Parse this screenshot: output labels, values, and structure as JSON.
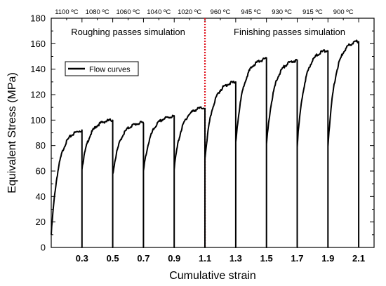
{
  "chart_data": {
    "type": "line",
    "title": "",
    "xlabel": "Cumulative strain",
    "ylabel": "Equivalent Stress (MPa)",
    "xlim": [
      0.1,
      2.2
    ],
    "ylim": [
      0,
      180
    ],
    "x_ticks": [
      0.3,
      0.5,
      0.7,
      0.9,
      1.1,
      1.3,
      1.5,
      1.7,
      1.9,
      2.1
    ],
    "x_tick_labels": [
      "0.3",
      "0.5",
      "0.7",
      "0.9",
      "1.1",
      "1.3",
      "1.5",
      "1.7",
      "1.9",
      "2.1"
    ],
    "y_ticks": [
      0,
      20,
      40,
      60,
      80,
      100,
      120,
      140,
      160,
      180
    ],
    "y_tick_labels": [
      "0",
      "20",
      "40",
      "60",
      "80",
      "100",
      "120",
      "140",
      "160",
      "180"
    ],
    "top_axis_labels": [
      {
        "label": "1100 ºC",
        "x": 0.2
      },
      {
        "label": "1080 ºC",
        "x": 0.4
      },
      {
        "label": "1060 ºC",
        "x": 0.6
      },
      {
        "label": "1040 ºC",
        "x": 0.8
      },
      {
        "label": "1020 ºC",
        "x": 1.0
      },
      {
        "label": "960 ºC",
        "x": 1.2
      },
      {
        "label": "945 ºC",
        "x": 1.4
      },
      {
        "label": "930 ºC",
        "x": 1.6
      },
      {
        "label": "915 ºC",
        "x": 1.8
      },
      {
        "label": "900 ºC",
        "x": 2.0
      }
    ],
    "regions": [
      {
        "label": "Roughing passes simulation",
        "x": 0.6
      },
      {
        "label": "Finishing passes simulation",
        "x": 1.65
      }
    ],
    "divider_x": 1.1,
    "legend": {
      "entry": "Flow curves",
      "placement": "top-left"
    },
    "series": [
      {
        "name": "Flow curves",
        "passes": [
          {
            "x0": 0.1,
            "x1": 0.3,
            "y_start": 10,
            "y_end": 92
          },
          {
            "x0": 0.3,
            "x1": 0.5,
            "y_start": 62,
            "y_end": 100
          },
          {
            "x0": 0.5,
            "x1": 0.7,
            "y_start": 57,
            "y_end": 98
          },
          {
            "x0": 0.7,
            "x1": 0.9,
            "y_start": 60,
            "y_end": 103
          },
          {
            "x0": 0.9,
            "x1": 1.1,
            "y_start": 62,
            "y_end": 110
          },
          {
            "x0": 1.1,
            "x1": 1.3,
            "y_start": 70,
            "y_end": 130
          },
          {
            "x0": 1.3,
            "x1": 1.5,
            "y_start": 82,
            "y_end": 148
          },
          {
            "x0": 1.5,
            "x1": 1.7,
            "y_start": 80,
            "y_end": 147
          },
          {
            "x0": 1.7,
            "x1": 1.9,
            "y_start": 80,
            "y_end": 155
          },
          {
            "x0": 1.9,
            "x1": 2.1,
            "y_start": 80,
            "y_end": 162
          }
        ]
      }
    ],
    "colors": {
      "curve": "#000000",
      "divider": "#e0141e",
      "axis": "#000000"
    }
  }
}
